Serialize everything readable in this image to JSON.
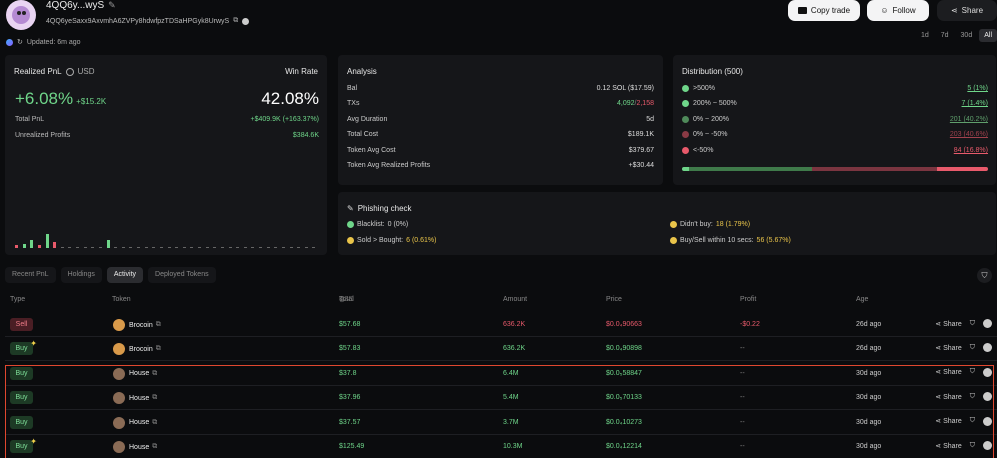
{
  "header": {
    "wallet_name": "4QQ6y...wyS",
    "wallet_address": "4QQ6yeSaxx9AxvmhA6ZVPy8hdwfpzTDSaHPGyk8UrwyS",
    "updated": "Updated: 6m ago",
    "copy_trade": "Copy trade",
    "follow": "Follow",
    "share": "Share",
    "ranges": [
      "1d",
      "7d",
      "30d",
      "All"
    ],
    "active_range": "All"
  },
  "pnl_card": {
    "title": "Realized PnL",
    "currency": "USD",
    "pnl_pct": "+6.08%",
    "pnl_usd": "+$15.2K",
    "winrate_label": "Win Rate",
    "winrate": "42.08%",
    "total_pnl_label": "Total PnL",
    "total_pnl_value": "+$409.9K (+163.37%)",
    "unrealized_label": "Unrealized Profits",
    "unrealized_value": "$384.6K",
    "bars": [
      2,
      3,
      6,
      2,
      10,
      4,
      0,
      0,
      0,
      0,
      0,
      0,
      6,
      0,
      0,
      0,
      0,
      0,
      0,
      0,
      0,
      0,
      0,
      0,
      0,
      0,
      0,
      0,
      0,
      0,
      0,
      0,
      0,
      0,
      0,
      0,
      0,
      0,
      0,
      0
    ],
    "bar_colors": [
      "red",
      "green",
      "green",
      "red",
      "green",
      "red",
      "none",
      "none",
      "none",
      "none",
      "none",
      "none",
      "green"
    ]
  },
  "analysis": {
    "title": "Analysis",
    "rows": [
      {
        "label": "Bal",
        "value": "0.12 SOL ($17.59)"
      },
      {
        "label": "TXs",
        "value_green": "4,092",
        "value_red": "2,158"
      },
      {
        "label": "Avg Duration",
        "value": "5d"
      },
      {
        "label": "Total Cost",
        "value": "$189.1K"
      },
      {
        "label": "Token Avg Cost",
        "value": "$379.67"
      },
      {
        "label": "Token Avg Realized Profits",
        "value": "+$30.44"
      }
    ]
  },
  "distribution": {
    "title": "Distribution (500)",
    "rows": [
      {
        "label": ">500%",
        "value": "5 (1%)",
        "color": "#6fd68a",
        "value_color": "#6fd68a"
      },
      {
        "label": "200% ~ 500%",
        "value": "7 (1.4%)",
        "color": "#6fd68a",
        "value_color": "#6fd68a"
      },
      {
        "label": "0% ~ 200%",
        "value": "201 (40.2%)",
        "color": "#4f8a5a",
        "value_color": "#5f9f6c"
      },
      {
        "label": "0% ~ -50%",
        "value": "203 (40.6%)",
        "color": "#8a3a45",
        "value_color": "#a0414d"
      },
      {
        "label": "<-50%",
        "value": "84 (16.8%)",
        "color": "#e85a6b",
        "value_color": "#e85a6b"
      }
    ],
    "segments": [
      1,
      1.4,
      40.2,
      40.6,
      16.8
    ],
    "segment_colors": [
      "#6fd68a",
      "#6fd68a",
      "#3f7a4a",
      "#7a3540",
      "#e85a6b"
    ]
  },
  "phishing": {
    "title": "Phishing check",
    "blacklist_label": "Blacklist:",
    "blacklist_value": "0 (0%)",
    "sold_label": "Sold > Bought:",
    "sold_value": "6 (0.61%)",
    "didnt_buy_label": "Didn't buy:",
    "didnt_buy_value": "18 (1.79%)",
    "buysell_label": "Buy/Sell within 10 secs:",
    "buysell_value": "56 (5.67%)"
  },
  "tabs": [
    "Recent PnL",
    "Holdings",
    "Activity",
    "Deployed Tokens"
  ],
  "active_tab": "Activity",
  "table": {
    "headers": {
      "type": "Type",
      "token": "Token",
      "total": "Total",
      "total_unit": "USD",
      "amount": "Amount",
      "price": "Price",
      "profit": "Profit",
      "age": "Age"
    },
    "share_label": "Share",
    "rows": [
      {
        "type": "Sell",
        "token": "Brocoin",
        "total": "$57.68",
        "amount": "636.2K",
        "price": "$0.0₄90663",
        "profit": "-$0.22",
        "age": "26d ago",
        "new": false
      },
      {
        "type": "Buy",
        "token": "Brocoin",
        "total": "$57.83",
        "amount": "636.2K",
        "price": "$0.0₄90898",
        "profit": "--",
        "age": "26d ago",
        "new": true
      },
      {
        "type": "Buy",
        "token": "House",
        "total": "$37.8",
        "amount": "6.4M",
        "price": "$0.0₅58847",
        "profit": "--",
        "age": "30d ago",
        "new": false
      },
      {
        "type": "Buy",
        "token": "House",
        "total": "$37.96",
        "amount": "5.4M",
        "price": "$0.0₅70133",
        "profit": "--",
        "age": "30d ago",
        "new": false
      },
      {
        "type": "Buy",
        "token": "House",
        "total": "$37.57",
        "amount": "3.7M",
        "price": "$0.0₄10273",
        "profit": "--",
        "age": "30d ago",
        "new": false
      },
      {
        "type": "Buy",
        "token": "House",
        "total": "$125.49",
        "amount": "10.3M",
        "price": "$0.0₄12214",
        "profit": "--",
        "age": "30d ago",
        "new": true
      }
    ]
  }
}
